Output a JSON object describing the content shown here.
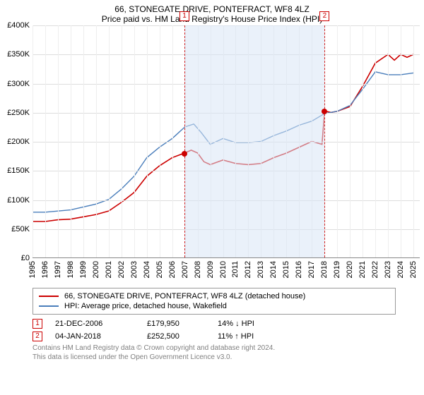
{
  "header": {
    "title": "66, STONEGATE DRIVE, PONTEFRACT, WF8 4LZ",
    "subtitle": "Price paid vs. HM Land Registry's House Price Index (HPI)"
  },
  "chart": {
    "type": "line",
    "background_color": "#ffffff",
    "grid_color_h": "#dddddd",
    "grid_color_v": "#eeeeee",
    "x_start": 1995,
    "x_end": 2025.5,
    "x_ticks": [
      1995,
      1996,
      1997,
      1998,
      1999,
      2000,
      2001,
      2002,
      2003,
      2004,
      2005,
      2006,
      2007,
      2008,
      2009,
      2010,
      2011,
      2012,
      2013,
      2014,
      2015,
      2016,
      2017,
      2018,
      2019,
      2020,
      2021,
      2022,
      2023,
      2024,
      2025
    ],
    "y_min": 0,
    "y_max": 400000,
    "y_tick_step": 50000,
    "y_tick_labels": [
      "£0",
      "£50K",
      "£100K",
      "£150K",
      "£200K",
      "£250K",
      "£300K",
      "£350K",
      "£400K"
    ],
    "tick_fontsize": 11,
    "shade": {
      "from": 2006.97,
      "to": 2018.01,
      "color": "#d8e6f5",
      "opacity": 0.55
    },
    "series": [
      {
        "id": "property",
        "label": "66, STONEGATE DRIVE, PONTEFRACT, WF8 4LZ (detached house)",
        "color": "#cc0000",
        "width": 1.6,
        "points": [
          [
            1995,
            62000
          ],
          [
            1996,
            62000
          ],
          [
            1997,
            65000
          ],
          [
            1998,
            66000
          ],
          [
            1999,
            70000
          ],
          [
            2000,
            74000
          ],
          [
            2001,
            80000
          ],
          [
            2002,
            95000
          ],
          [
            2003,
            112000
          ],
          [
            2004,
            140000
          ],
          [
            2005,
            158000
          ],
          [
            2006,
            172000
          ],
          [
            2006.97,
            179950
          ],
          [
            2007.5,
            185000
          ],
          [
            2008,
            180000
          ],
          [
            2008.5,
            165000
          ],
          [
            2009,
            160000
          ],
          [
            2010,
            168000
          ],
          [
            2011,
            162000
          ],
          [
            2012,
            160000
          ],
          [
            2013,
            162000
          ],
          [
            2014,
            172000
          ],
          [
            2015,
            180000
          ],
          [
            2016,
            190000
          ],
          [
            2017,
            200000
          ],
          [
            2017.8,
            195000
          ],
          [
            2018.01,
            252500
          ],
          [
            2018.5,
            250000
          ],
          [
            2019,
            252000
          ],
          [
            2020,
            260000
          ],
          [
            2021,
            295000
          ],
          [
            2022,
            335000
          ],
          [
            2023,
            350000
          ],
          [
            2023.5,
            340000
          ],
          [
            2024,
            350000
          ],
          [
            2024.5,
            345000
          ],
          [
            2025,
            350000
          ]
        ]
      },
      {
        "id": "hpi",
        "label": "HPI: Average price, detached house, Wakefield",
        "color": "#4a7ebb",
        "width": 1.4,
        "points": [
          [
            1995,
            78000
          ],
          [
            1996,
            78000
          ],
          [
            1997,
            80000
          ],
          [
            1998,
            82000
          ],
          [
            1999,
            87000
          ],
          [
            2000,
            92000
          ],
          [
            2001,
            100000
          ],
          [
            2002,
            118000
          ],
          [
            2003,
            140000
          ],
          [
            2004,
            172000
          ],
          [
            2005,
            190000
          ],
          [
            2006,
            205000
          ],
          [
            2007,
            225000
          ],
          [
            2007.7,
            230000
          ],
          [
            2008.3,
            215000
          ],
          [
            2009,
            195000
          ],
          [
            2010,
            205000
          ],
          [
            2011,
            198000
          ],
          [
            2012,
            198000
          ],
          [
            2013,
            200000
          ],
          [
            2014,
            210000
          ],
          [
            2015,
            218000
          ],
          [
            2016,
            228000
          ],
          [
            2017,
            235000
          ],
          [
            2018,
            248000
          ],
          [
            2019,
            252000
          ],
          [
            2020,
            262000
          ],
          [
            2021,
            290000
          ],
          [
            2022,
            320000
          ],
          [
            2023,
            315000
          ],
          [
            2024,
            315000
          ],
          [
            2025,
            318000
          ]
        ]
      }
    ],
    "markers": [
      {
        "n": "1",
        "x": 2006.97,
        "y": 179950
      },
      {
        "n": "2",
        "x": 2018.01,
        "y": 252500
      }
    ]
  },
  "legend": {
    "items": [
      {
        "color": "#cc0000",
        "label": "66, STONEGATE DRIVE, PONTEFRACT, WF8 4LZ (detached house)"
      },
      {
        "color": "#4a7ebb",
        "label": "HPI: Average price, detached house, Wakefield"
      }
    ]
  },
  "sales": [
    {
      "n": "1",
      "date": "21-DEC-2006",
      "price": "£179,950",
      "diff": "14% ↓ HPI"
    },
    {
      "n": "2",
      "date": "04-JAN-2018",
      "price": "£252,500",
      "diff": "11% ↑ HPI"
    }
  ],
  "attribution": {
    "line1": "Contains HM Land Registry data © Crown copyright and database right 2024.",
    "line2": "This data is licensed under the Open Government Licence v3.0."
  }
}
